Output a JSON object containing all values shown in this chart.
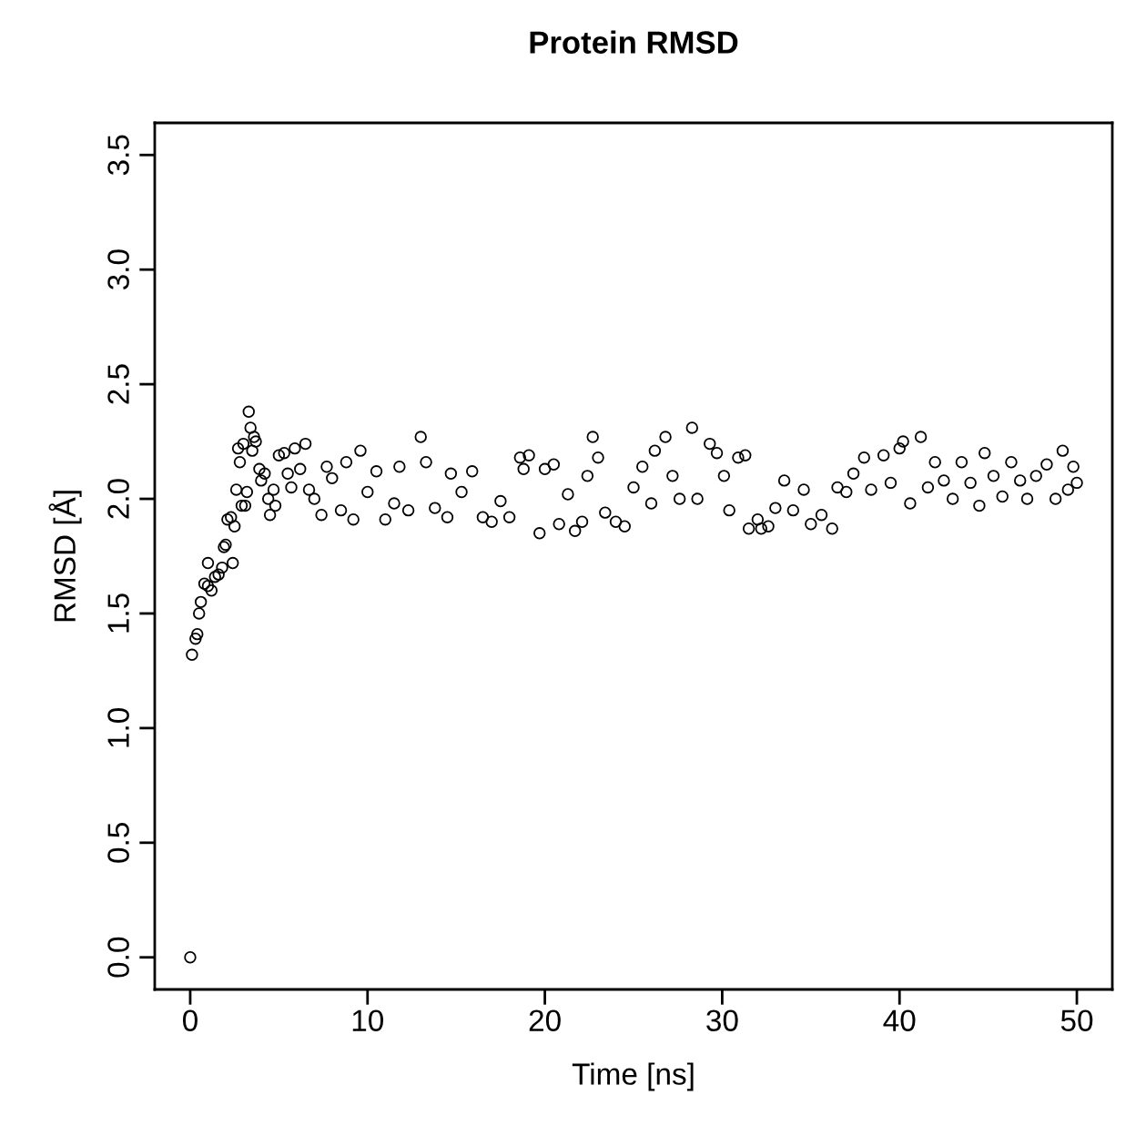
{
  "chart_data": {
    "type": "scatter",
    "title": "Protein RMSD",
    "xlabel": "Time [ns]",
    "ylabel": "RMSD [Å]",
    "x": [
      0,
      0.1,
      0.3,
      0.4,
      0.5,
      0.6,
      0.8,
      1.0,
      1.0,
      1.2,
      1.4,
      1.6,
      1.8,
      1.9,
      2.0,
      2.1,
      2.3,
      2.4,
      2.5,
      2.6,
      2.7,
      2.8,
      2.9,
      3.0,
      3.1,
      3.2,
      3.3,
      3.4,
      3.5,
      3.6,
      3.7,
      3.9,
      4.0,
      4.2,
      4.4,
      4.5,
      4.7,
      4.8,
      5.0,
      5.3,
      5.5,
      5.7,
      5.9,
      6.2,
      6.5,
      6.7,
      7.0,
      7.4,
      7.7,
      8.0,
      8.5,
      8.8,
      9.2,
      9.6,
      10.0,
      10.5,
      11.0,
      11.5,
      11.8,
      12.3,
      13.0,
      13.3,
      13.8,
      14.5,
      14.7,
      15.3,
      15.9,
      16.5,
      17.0,
      17.5,
      18.0,
      18.6,
      18.8,
      19.1,
      19.7,
      20.0,
      20.5,
      20.8,
      21.3,
      21.7,
      22.1,
      22.4,
      22.7,
      23.0,
      23.4,
      24.0,
      24.5,
      25.0,
      25.5,
      26.0,
      26.2,
      26.8,
      27.2,
      27.6,
      28.3,
      28.6,
      29.3,
      29.7,
      30.1,
      30.4,
      30.9,
      31.3,
      31.5,
      32.0,
      32.2,
      32.6,
      33.0,
      33.5,
      34.0,
      34.6,
      35.0,
      35.6,
      36.2,
      36.5,
      37.0,
      37.4,
      38.0,
      38.4,
      39.1,
      39.5,
      40.0,
      40.2,
      40.6,
      41.2,
      41.6,
      42.0,
      42.5,
      43.0,
      43.5,
      44.0,
      44.5,
      44.8,
      45.3,
      45.8,
      46.3,
      46.8,
      47.2,
      47.7,
      48.3,
      48.8,
      49.2,
      49.5,
      49.8,
      50.0
    ],
    "series": [
      {
        "color": "#000000",
        "values": [
          0,
          1.32,
          1.39,
          1.41,
          1.5,
          1.55,
          1.63,
          1.62,
          1.72,
          1.6,
          1.66,
          1.67,
          1.7,
          1.79,
          1.8,
          1.91,
          1.92,
          1.72,
          1.88,
          2.04,
          2.22,
          2.16,
          1.97,
          2.24,
          1.97,
          2.03,
          2.38,
          2.31,
          2.21,
          2.27,
          2.25,
          2.13,
          2.08,
          2.11,
          2.0,
          1.93,
          2.04,
          1.97,
          2.19,
          2.2,
          2.11,
          2.05,
          2.22,
          2.13,
          2.24,
          2.04,
          2.0,
          1.93,
          2.14,
          2.09,
          1.95,
          2.16,
          1.91,
          2.21,
          2.03,
          2.12,
          1.91,
          1.98,
          2.14,
          1.95,
          2.27,
          2.16,
          1.96,
          1.92,
          2.11,
          2.03,
          2.12,
          1.92,
          1.9,
          1.99,
          1.92,
          2.18,
          2.13,
          2.19,
          1.85,
          2.13,
          2.15,
          1.89,
          2.02,
          1.86,
          1.9,
          2.1,
          2.27,
          2.18,
          1.94,
          1.9,
          1.88,
          2.05,
          2.14,
          1.98,
          2.21,
          2.27,
          2.1,
          2.0,
          2.31,
          2.0,
          2.24,
          2.2,
          2.1,
          1.95,
          2.18,
          2.19,
          1.87,
          1.91,
          1.87,
          1.88,
          1.96,
          2.08,
          1.95,
          2.04,
          1.89,
          1.93,
          1.87,
          2.05,
          2.03,
          2.11,
          2.18,
          2.04,
          2.19,
          2.07,
          2.22,
          2.25,
          1.98,
          2.27,
          2.05,
          2.16,
          2.08,
          2.0,
          2.16,
          2.07,
          1.97,
          2.2,
          2.1,
          2.01,
          2.16,
          2.08,
          2.0,
          2.1,
          2.15,
          2.0,
          2.21,
          2.04,
          2.14,
          2.07
        ]
      }
    ],
    "marker": "circle",
    "grid": false,
    "legend": false,
    "xlim": [
      -2,
      52
    ],
    "ylim": [
      -0.14,
      3.64
    ],
    "xticks": [
      0,
      10,
      20,
      30,
      40,
      50
    ],
    "yticks": [
      {
        "value": 0,
        "label": "0.0"
      },
      0.5,
      {
        "value": 1,
        "label": "1.0"
      },
      1.5,
      {
        "value": 2,
        "label": "2.0"
      },
      2.5,
      {
        "value": 3,
        "label": "3.0"
      },
      3.5
    ]
  }
}
